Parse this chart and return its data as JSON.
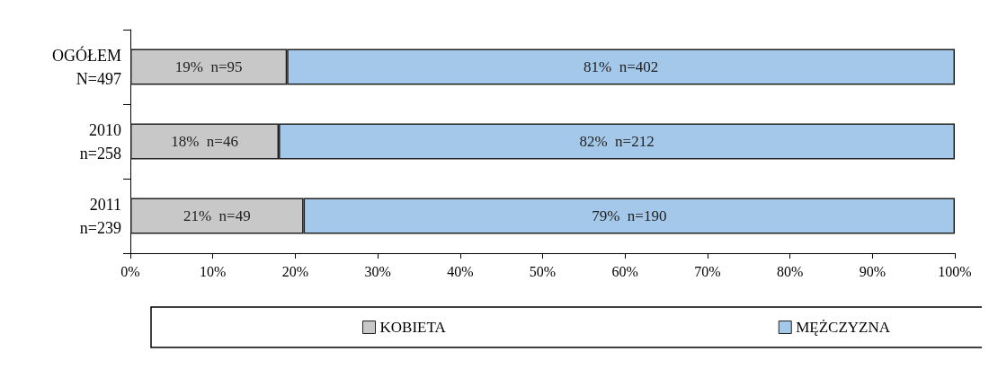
{
  "chart_data": {
    "type": "bar",
    "orientation": "horizontal",
    "stacked": true,
    "categories": [
      "OGÓŁEM\nN=497",
      "2010\nn=258",
      "2011\nn=239"
    ],
    "series": [
      {
        "name": "KOBIETA",
        "color": "#c8c8c8",
        "values": [
          19,
          18,
          21
        ],
        "value_labels": [
          "19%  n=95",
          "18%  n=46",
          "21%  n=49"
        ]
      },
      {
        "name": "MĘŻCZYZNA",
        "color": "#a3c8ea",
        "values": [
          81,
          82,
          79
        ],
        "value_labels": [
          "81%  n=402",
          "82%  n=212",
          "79%  n=190"
        ]
      }
    ],
    "xlim": [
      0,
      100
    ],
    "xticks": [
      {
        "value": 0,
        "label": "0%"
      },
      {
        "value": 10,
        "label": "10%"
      },
      {
        "value": 20,
        "label": "20%"
      },
      {
        "value": 30,
        "label": "30%"
      },
      {
        "value": 40,
        "label": "40%"
      },
      {
        "value": 50,
        "label": "50%"
      },
      {
        "value": 60,
        "label": "60%"
      },
      {
        "value": 70,
        "label": "70%"
      },
      {
        "value": 80,
        "label": "80%"
      },
      {
        "value": 90,
        "label": "90%"
      },
      {
        "value": 100,
        "label": "100%"
      }
    ],
    "grid": false,
    "legend": "bottom"
  }
}
